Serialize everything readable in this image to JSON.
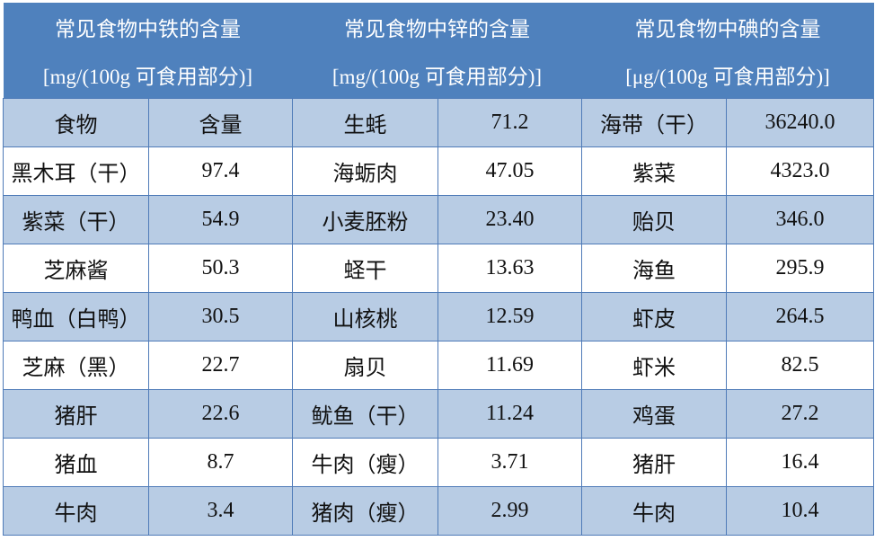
{
  "colors": {
    "header": "#4F81BD",
    "alt_row": "#B8CCE4",
    "row": "#FFFFFF"
  },
  "groups": [
    {
      "title": "常见食物中铁的含量",
      "unit": "[mg/(100g 可食用部分)]"
    },
    {
      "title": "常见食物中锌的含量",
      "unit": "[mg/(100g 可食用部分)]"
    },
    {
      "title": "常见食物中碘的含量",
      "unit": "[μg/(100g 可食用部分)]"
    }
  ],
  "rows": [
    [
      "食物",
      "含量",
      "生蚝",
      "71.2",
      "海带（干）",
      "36240.0"
    ],
    [
      "黑木耳（干）",
      "97.4",
      "海蛎肉",
      "47.05",
      "紫菜",
      "4323.0"
    ],
    [
      "紫菜（干）",
      "54.9",
      "小麦胚粉",
      "23.40",
      "贻贝",
      "346.0"
    ],
    [
      "芝麻酱",
      "50.3",
      "蛏干",
      "13.63",
      "海鱼",
      "295.9"
    ],
    [
      "鸭血（白鸭）",
      "30.5",
      "山核桃",
      "12.59",
      "虾皮",
      "264.5"
    ],
    [
      "芝麻（黑）",
      "22.7",
      "扇贝",
      "11.69",
      "虾米",
      "82.5"
    ],
    [
      "猪肝",
      "22.6",
      "鱿鱼（干）",
      "11.24",
      "鸡蛋",
      "27.2"
    ],
    [
      "猪血",
      "8.7",
      "牛肉（瘦）",
      "3.71",
      "猪肝",
      "16.4"
    ],
    [
      "牛肉",
      "3.4",
      "猪肉（瘦）",
      "2.99",
      "牛肉",
      "10.4"
    ]
  ]
}
